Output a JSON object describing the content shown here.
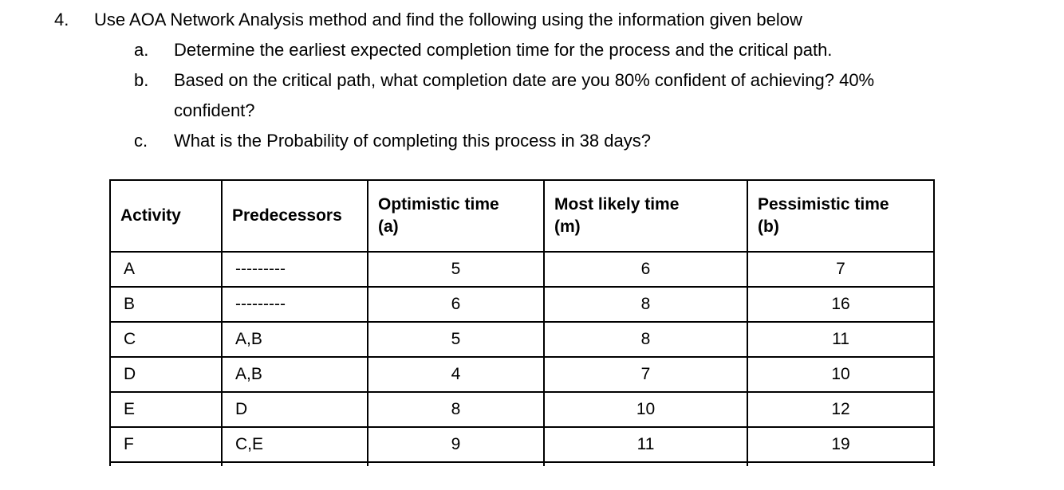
{
  "question": {
    "number": "4.",
    "text": "Use AOA Network Analysis method and find the following using the information given below",
    "items": [
      {
        "label": "a.",
        "lines": [
          "Determine the earliest expected completion time for the process and the critical path."
        ]
      },
      {
        "label": "b.",
        "lines": [
          "Based on the critical path, what completion date are you 80% confident of achieving? 40%",
          "confident?"
        ]
      },
      {
        "label": "c.",
        "lines": [
          "What is the Probability of completing this process in 38 days?"
        ]
      }
    ]
  },
  "table": {
    "headers": [
      {
        "title": "Activity",
        "sub": ""
      },
      {
        "title": "Predecessors",
        "sub": ""
      },
      {
        "title": "Optimistic time",
        "sub": "(a)"
      },
      {
        "title": "Most likely time",
        "sub": "(m)"
      },
      {
        "title": "Pessimistic time",
        "sub": "(b)"
      }
    ],
    "rows": [
      {
        "activity": "A",
        "predecessors": "---------",
        "optimistic": "5",
        "most_likely": "6",
        "pessimistic": "7"
      },
      {
        "activity": "B",
        "predecessors": "---------",
        "optimistic": "6",
        "most_likely": "8",
        "pessimistic": "16"
      },
      {
        "activity": "C",
        "predecessors": "A,B",
        "optimistic": "5",
        "most_likely": "8",
        "pessimistic": "11"
      },
      {
        "activity": "D",
        "predecessors": "A,B",
        "optimistic": "4",
        "most_likely": "7",
        "pessimistic": "10"
      },
      {
        "activity": "E",
        "predecessors": "D",
        "optimistic": "8",
        "most_likely": "10",
        "pessimistic": "12"
      },
      {
        "activity": "F",
        "predecessors": "C,E",
        "optimistic": "9",
        "most_likely": "11",
        "pessimistic": "19"
      }
    ]
  }
}
